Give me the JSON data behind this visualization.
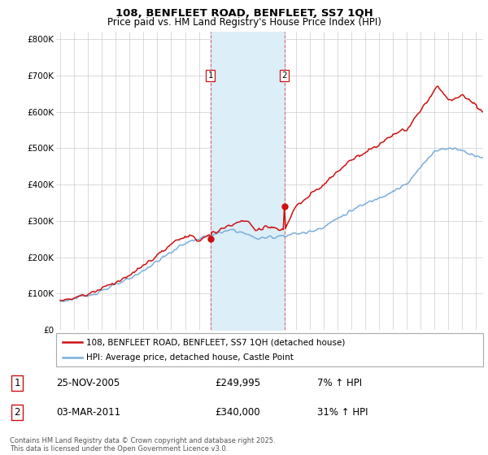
{
  "title_line1": "108, BENFLEET ROAD, BENFLEET, SS7 1QH",
  "title_line2": "Price paid vs. HM Land Registry's House Price Index (HPI)",
  "background_color": "#ffffff",
  "plot_bg_color": "#ffffff",
  "grid_color": "#cccccc",
  "hpi_color": "#7aaedb",
  "price_color": "#cc1111",
  "shade_color": "#dceef8",
  "legend_line1": "108, BENFLEET ROAD, BENFLEET, SS7 1QH (detached house)",
  "legend_line2": "HPI: Average price, detached house, Castle Point",
  "table_row1": [
    "1",
    "25-NOV-2005",
    "£249,995",
    "7% ↑ HPI"
  ],
  "table_row2": [
    "2",
    "03-MAR-2011",
    "£340,000",
    "31% ↑ HPI"
  ],
  "footer": "Contains HM Land Registry data © Crown copyright and database right 2025.\nThis data is licensed under the Open Government Licence v3.0.",
  "ylim": [
    0,
    820000
  ],
  "yticks": [
    0,
    100000,
    200000,
    300000,
    400000,
    500000,
    600000,
    700000,
    800000
  ],
  "ytick_labels": [
    "£0",
    "£100K",
    "£200K",
    "£300K",
    "£400K",
    "£500K",
    "£600K",
    "£700K",
    "£800K"
  ]
}
